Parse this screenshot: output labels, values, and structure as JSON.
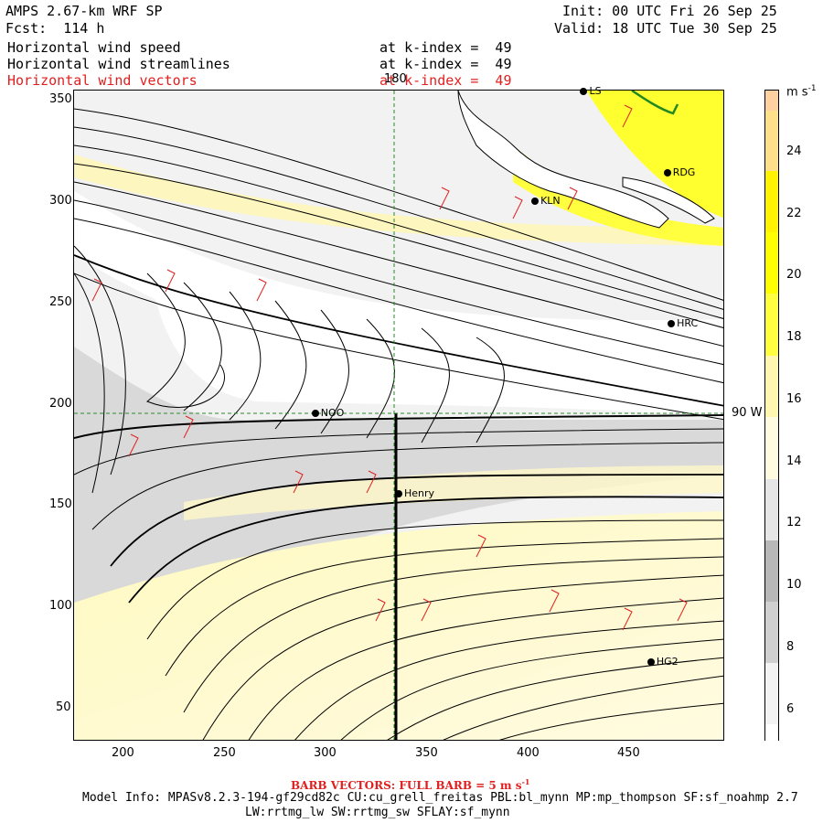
{
  "header": {
    "title": "AMPS 2.67-km WRF SP",
    "forecast": "Fcst:  114 h",
    "init": "Init: 00 UTC Fri 26 Sep 25",
    "valid": "Valid: 18 UTC Tue 30 Sep 25",
    "fields": [
      {
        "name": "Horizontal wind speed",
        "level": "at k-index =  49"
      },
      {
        "name": "Horizontal wind streamlines",
        "level": "at k-index =  49"
      },
      {
        "name": "Horizontal wind vectors",
        "level": "at k-index =  49"
      }
    ]
  },
  "map": {
    "x_axis": {
      "range": [
        175,
        495
      ],
      "ticks": [
        "200",
        "250",
        "300",
        "350",
        "400",
        "450"
      ]
    },
    "y_axis": {
      "range": [
        33,
        355
      ],
      "ticks": [
        "50",
        "100",
        "150",
        "200",
        "250",
        "300",
        "350"
      ]
    },
    "meridian_label": "180",
    "parallel_label": "90 W",
    "stations": [
      {
        "name": "KLN",
        "x": 402,
        "y": 300
      },
      {
        "name": "RDG",
        "x": 467,
        "y": 314
      },
      {
        "name": "HRC",
        "x": 469,
        "y": 239
      },
      {
        "name": "NOO",
        "x": 294,
        "y": 195
      },
      {
        "name": "Henry",
        "x": 335,
        "y": 155
      },
      {
        "name": "HG2",
        "x": 459,
        "y": 72
      },
      {
        "name": "LS",
        "x": 426,
        "y": 354
      }
    ]
  },
  "colorbar": {
    "unit": "m s",
    "unit_exp": "-1",
    "ticks": [
      "24",
      "22",
      "20",
      "18",
      "16",
      "14",
      "12",
      "10",
      "8",
      "6"
    ],
    "colors": {
      "c4": "#ffffff",
      "c6": "#f3f3f3",
      "c8": "#d0d0d0",
      "c10": "#b8b8b8",
      "c12": "#e6e6e6",
      "c14": "#fffbe0",
      "c16": "#fff6b0",
      "c18": "#ffff40",
      "c20": "#ffff00",
      "c22": "#fff300",
      "c24": "#ffe08a",
      "c26": "#ffd0a0"
    }
  },
  "footer": {
    "barb_note": "BARB VECTORS:  FULL BARB = 5 m s",
    "barb_exp": "-1",
    "model_info": "Model Info: MPASv8.2.3-194-gf29cd82c CU:cu_grell_freitas PBL:bl_mynn MP:mp_thompson SF:sf_noahmp 2.7",
    "model_info2": "LW:rrtmg_lw SW:rrtmg_sw SFLAY:sf_mynn"
  }
}
